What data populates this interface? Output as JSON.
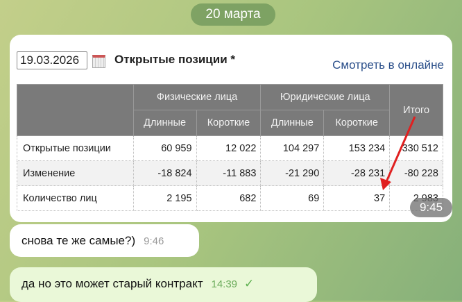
{
  "date_separator": "20 марта",
  "image": {
    "date": "19.03.2026",
    "title": "Открытые позиции *",
    "link": "Смотреть в онлайне",
    "headers": {
      "phys": "Физические лица",
      "jur": "Юридические лица",
      "total": "Итого",
      "long": "Длинные",
      "short": "Короткие"
    },
    "rows": [
      {
        "label": "Открытые позиции",
        "values": [
          "60 959",
          "12 022",
          "104 297",
          "153 234",
          "330 512"
        ]
      },
      {
        "label": "Изменение",
        "values": [
          "-18 824",
          "-11 883",
          "-21 290",
          "-28 231",
          "-80 228"
        ]
      },
      {
        "label": "Количество лиц",
        "values": [
          "2 195",
          "682",
          "69",
          "37",
          "2 983"
        ]
      }
    ],
    "annotation_color": "#e02020"
  },
  "messages": [
    {
      "text": "",
      "time": "9:45"
    },
    {
      "text": "снова те же самые?)",
      "time": "9:46"
    },
    {
      "text": "да но это может старый контракт",
      "time": "14:39",
      "status": "read-check"
    }
  ]
}
